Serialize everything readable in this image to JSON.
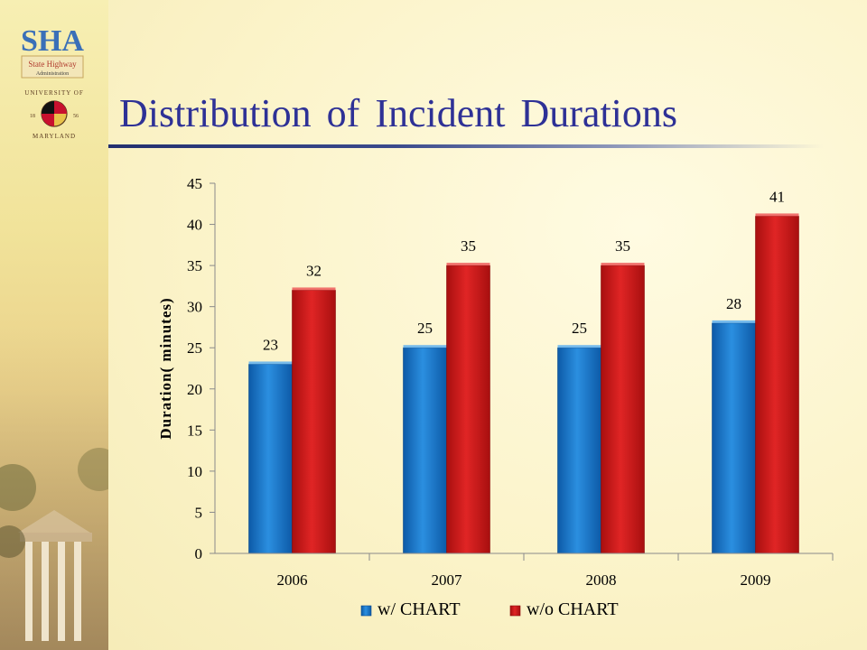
{
  "slide": {
    "title": "Distribution of Incident Durations"
  },
  "logos": {
    "sha_text": "SHA",
    "sha_subtitle": "State Highway",
    "sha_subtitle2": "Administration",
    "um_name_top": "UNIVERSITY OF",
    "um_name_bottom": "MARYLAND",
    "um_year_left": "18",
    "um_year_right": "56"
  },
  "colors": {
    "title": "#2e3196",
    "series_with": "#1a78c8",
    "series_without": "#cc1818"
  },
  "chart_data": {
    "type": "bar",
    "categories": [
      "2006",
      "2007",
      "2008",
      "2009"
    ],
    "series": [
      {
        "name": "w/ CHART",
        "values": [
          23,
          25,
          25,
          28
        ],
        "color": "#1a78c8"
      },
      {
        "name": "w/o CHART",
        "values": [
          32,
          35,
          35,
          41
        ],
        "color": "#cc1818"
      }
    ],
    "ylabel": "Duration( minutes)",
    "xlabel": "",
    "ylim": [
      0,
      45
    ],
    "yticks": [
      "0",
      "5",
      "10",
      "15",
      "20",
      "25",
      "30",
      "35",
      "40",
      "45"
    ],
    "grid": false,
    "legend_position": "bottom",
    "data_labels": true
  }
}
